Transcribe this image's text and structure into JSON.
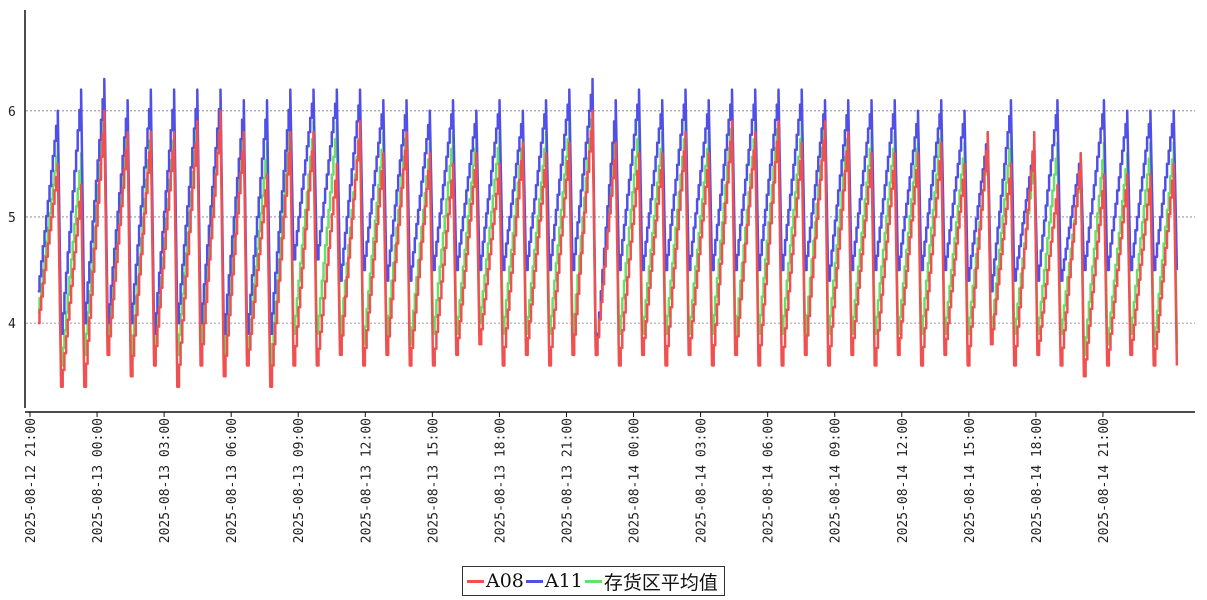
{
  "chart_data": {
    "type": "line",
    "title": "",
    "xlabel": "",
    "ylabel": "",
    "ylim": [
      3.2,
      6.95
    ],
    "yticks": [
      4,
      5,
      6
    ],
    "grid": "horizontal dotted at y ticks",
    "legend_position": "bottom-center",
    "x_tick_labels": [
      "2025-08-12 21:00",
      "2025-08-13 00:00",
      "2025-08-13 03:00",
      "2025-08-13 06:00",
      "2025-08-13 09:00",
      "2025-08-13 12:00",
      "2025-08-13 15:00",
      "2025-08-13 18:00",
      "2025-08-13 21:00",
      "2025-08-14 00:00",
      "2025-08-14 03:00",
      "2025-08-14 06:00",
      "2025-08-14 09:00",
      "2025-08-14 12:00",
      "2025-08-14 15:00",
      "2025-08-14 18:00",
      "2025-08-14 21:00"
    ],
    "x_start_hours": 0,
    "x_end_hours": 51,
    "cycle_period_hours": 1.04,
    "cycle_start_hours": 0.35,
    "series": [
      {
        "name": "A08",
        "color": "#f05050",
        "peaks": [
          5.5,
          5.3,
          6.0,
          5.8,
          5.8,
          5.8,
          5.9,
          6.0,
          5.8,
          5.4,
          5.8,
          5.8,
          5.5,
          5.9,
          5.6,
          5.8,
          5.6,
          5.5,
          5.6,
          5.5,
          5.7,
          5.6,
          5.7,
          6.0,
          5.7,
          5.6,
          5.6,
          5.8,
          5.6,
          5.9,
          5.8,
          5.9,
          5.7,
          5.9,
          5.8,
          5.6,
          5.6,
          5.6,
          5.7,
          5.5,
          5.8,
          5.5,
          5.8,
          5.3,
          5.6,
          5.4,
          5.4,
          5.4,
          5.5
        ],
        "troughs": [
          4.0,
          3.4,
          3.4,
          3.7,
          3.5,
          3.6,
          3.4,
          3.6,
          3.5,
          3.6,
          3.4,
          3.6,
          3.6,
          3.7,
          3.6,
          3.7,
          3.6,
          3.6,
          3.7,
          3.8,
          3.6,
          3.7,
          3.6,
          3.7,
          3.7,
          3.6,
          3.7,
          3.6,
          3.7,
          3.6,
          3.7,
          3.6,
          3.6,
          3.7,
          3.6,
          3.7,
          3.6,
          3.7,
          3.6,
          3.7,
          3.6,
          3.8,
          3.6,
          3.7,
          3.6,
          3.5,
          3.6,
          3.7,
          3.6
        ]
      },
      {
        "name": "A11",
        "color": "#5050e8",
        "peaks": [
          6.0,
          6.2,
          6.3,
          6.1,
          6.2,
          6.2,
          6.2,
          6.2,
          6.1,
          6.1,
          6.2,
          6.2,
          6.2,
          6.2,
          6.1,
          6.1,
          6.0,
          6.1,
          6.0,
          6.1,
          6.0,
          6.1,
          6.2,
          6.3,
          6.1,
          6.2,
          6.1,
          6.2,
          6.1,
          6.2,
          6.2,
          6.2,
          6.2,
          6.1,
          6.1,
          6.1,
          6.1,
          6.0,
          6.1,
          6.0,
          5.8,
          6.1,
          5.7,
          6.1,
          5.6,
          6.1,
          6.0,
          6.0,
          6.0
        ],
        "troughs": [
          4.3,
          3.9,
          4.0,
          4.0,
          4.0,
          3.9,
          4.0,
          4.0,
          3.9,
          3.9,
          3.9,
          4.6,
          4.6,
          4.4,
          4.5,
          4.4,
          4.4,
          4.5,
          4.5,
          4.5,
          4.5,
          4.5,
          4.5,
          4.5,
          3.7,
          4.5,
          4.5,
          4.5,
          4.5,
          4.5,
          4.5,
          4.5,
          4.5,
          4.5,
          4.4,
          4.5,
          4.5,
          4.5,
          4.5,
          4.5,
          4.4,
          4.3,
          4.4,
          4.4,
          4.4,
          4.5,
          4.5,
          4.5,
          4.5
        ]
      },
      {
        "name": "存货区平均值",
        "color": "#66e066",
        "peaks": [
          5.7,
          5.6,
          6.1,
          5.9,
          5.9,
          5.9,
          6.0,
          6.0,
          5.9,
          5.7,
          6.0,
          5.9,
          5.9,
          5.9,
          5.8,
          5.9,
          5.7,
          5.8,
          5.8,
          5.8,
          5.8,
          5.8,
          5.9,
          6.1,
          5.9,
          5.9,
          5.8,
          5.9,
          5.8,
          6.0,
          5.9,
          6.0,
          5.9,
          6.0,
          5.9,
          5.8,
          5.8,
          5.8,
          5.9,
          5.7,
          5.7,
          5.8,
          5.6,
          5.7,
          5.5,
          5.7,
          5.6,
          5.7,
          5.7
        ],
        "troughs": [
          4.1,
          3.6,
          3.7,
          3.8,
          3.7,
          3.7,
          3.7,
          3.8,
          3.7,
          3.7,
          3.6,
          3.9,
          3.9,
          3.9,
          3.8,
          3.9,
          3.8,
          3.9,
          3.9,
          4.0,
          3.9,
          3.9,
          3.9,
          3.9,
          3.7,
          3.9,
          3.9,
          3.9,
          3.9,
          3.9,
          3.9,
          3.9,
          3.9,
          3.9,
          3.9,
          3.9,
          3.9,
          3.9,
          3.9,
          3.9,
          3.9,
          3.9,
          3.9,
          3.9,
          3.9,
          3.7,
          3.8,
          3.9,
          3.8
        ]
      }
    ],
    "legend": [
      "A08",
      "A11",
      "存货区平均值"
    ]
  }
}
